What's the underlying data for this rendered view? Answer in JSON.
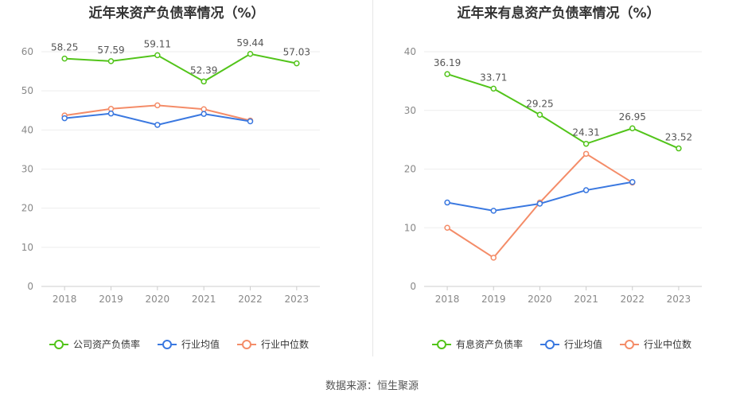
{
  "source_label": "数据来源：恒生聚源",
  "chart_data": [
    {
      "type": "line",
      "title": "近年来资产负债率情况（%）",
      "categories": [
        "2018",
        "2019",
        "2020",
        "2021",
        "2022",
        "2023"
      ],
      "ylim": [
        0,
        60
      ],
      "yticks": [
        0,
        10,
        20,
        30,
        40,
        50,
        60
      ],
      "grid": true,
      "legend_position": "bottom",
      "series": [
        {
          "name": "公司资产负债率",
          "color": "#52c41a",
          "values": [
            58.25,
            57.59,
            59.11,
            52.39,
            59.44,
            57.03
          ],
          "labels": [
            "58.25",
            "57.59",
            "59.11",
            "52.39",
            "59.44",
            "57.03"
          ]
        },
        {
          "name": "行业均值",
          "color": "#3a78e0",
          "values": [
            43.0,
            44.2,
            41.3,
            44.1,
            42.2,
            null
          ]
        },
        {
          "name": "行业中位数",
          "color": "#f48c68",
          "values": [
            43.7,
            45.4,
            46.3,
            45.3,
            42.4,
            null
          ]
        }
      ]
    },
    {
      "type": "line",
      "title": "近年来有息资产负债率情况（%）",
      "categories": [
        "2018",
        "2019",
        "2020",
        "2021",
        "2022",
        "2023"
      ],
      "ylim": [
        0,
        40
      ],
      "yticks": [
        0,
        10,
        20,
        30,
        40
      ],
      "grid": true,
      "legend_position": "bottom",
      "series": [
        {
          "name": "有息资产负债率",
          "color": "#52c41a",
          "values": [
            36.19,
            33.71,
            29.25,
            24.31,
            26.95,
            23.52
          ],
          "labels": [
            "36.19",
            "33.71",
            "29.25",
            "24.31",
            "26.95",
            "23.52"
          ]
        },
        {
          "name": "行业均值",
          "color": "#3a78e0",
          "values": [
            14.3,
            12.9,
            14.1,
            16.4,
            17.8,
            null
          ]
        },
        {
          "name": "行业中位数",
          "color": "#f48c68",
          "values": [
            10.0,
            4.9,
            14.3,
            22.6,
            17.7,
            null
          ]
        }
      ]
    }
  ]
}
